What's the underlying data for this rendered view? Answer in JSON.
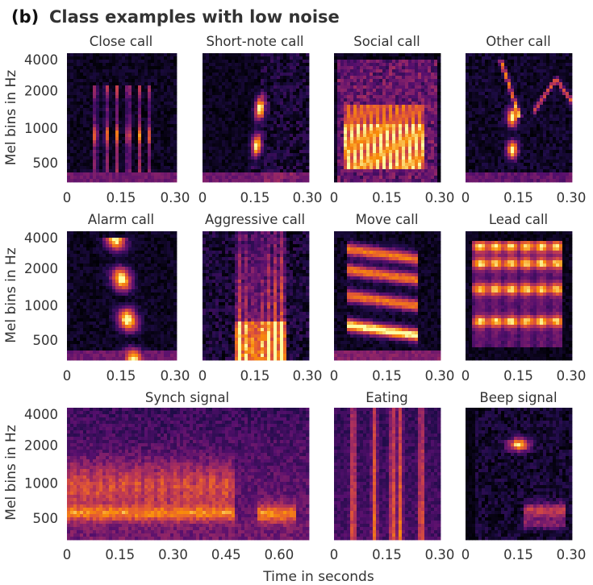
{
  "figure": {
    "panel_letter": "(b)",
    "title": "Class examples with low noise",
    "ylabel": "Mel bins in Hz",
    "xlabel": "Time in seconds"
  },
  "chart_data": [
    {
      "type": "heatmap",
      "title": "Close call",
      "x_ticks": [
        "0",
        "0.15",
        "0.30"
      ],
      "y_ticks": [
        "500",
        "1000",
        "2000",
        "4000"
      ],
      "xlim": [
        0,
        0.3
      ],
      "ylabel": "Mel bins in Hz",
      "pattern": "close",
      "colormap": "inferno"
    },
    {
      "type": "heatmap",
      "title": "Short-note call",
      "x_ticks": [
        "0",
        "0.15",
        "0.30"
      ],
      "y_ticks": [],
      "xlim": [
        0,
        0.3
      ],
      "pattern": "shortnote",
      "colormap": "inferno"
    },
    {
      "type": "heatmap",
      "title": "Social call",
      "x_ticks": [
        "0",
        "0.15",
        "0.30"
      ],
      "y_ticks": [],
      "xlim": [
        0,
        0.3
      ],
      "pattern": "social",
      "colormap": "inferno"
    },
    {
      "type": "heatmap",
      "title": "Other call",
      "x_ticks": [
        "0",
        "0.15",
        "0.30"
      ],
      "y_ticks": [],
      "xlim": [
        0,
        0.3
      ],
      "pattern": "other",
      "colormap": "inferno"
    },
    {
      "type": "heatmap",
      "title": "Alarm call",
      "x_ticks": [
        "0",
        "0.15",
        "0.30"
      ],
      "y_ticks": [
        "500",
        "1000",
        "2000",
        "4000"
      ],
      "xlim": [
        0,
        0.3
      ],
      "ylabel": "Mel bins in Hz",
      "pattern": "alarm",
      "colormap": "inferno"
    },
    {
      "type": "heatmap",
      "title": "Aggressive call",
      "x_ticks": [
        "0",
        "0.15",
        "0.30"
      ],
      "y_ticks": [],
      "xlim": [
        0,
        0.3
      ],
      "pattern": "aggressive",
      "colormap": "inferno"
    },
    {
      "type": "heatmap",
      "title": "Move call",
      "x_ticks": [
        "0",
        "0.15",
        "0.30"
      ],
      "y_ticks": [],
      "xlim": [
        0,
        0.3
      ],
      "pattern": "move",
      "colormap": "inferno"
    },
    {
      "type": "heatmap",
      "title": "Lead call",
      "x_ticks": [
        "0",
        "0.15",
        "0.30"
      ],
      "y_ticks": [],
      "xlim": [
        0,
        0.3
      ],
      "pattern": "lead",
      "colormap": "inferno"
    },
    {
      "type": "heatmap",
      "title": "Synch signal",
      "x_ticks": [
        "0",
        "0.15",
        "0.30",
        "0.45",
        "0.60"
      ],
      "y_ticks": [
        "500",
        "1000",
        "2000",
        "4000"
      ],
      "xlim": [
        0,
        0.68
      ],
      "ylabel": "Mel bins in Hz",
      "pattern": "synch",
      "colormap": "inferno"
    },
    {
      "type": "heatmap",
      "title": "Eating",
      "x_ticks": [
        "0",
        "0.15",
        "0.30"
      ],
      "y_ticks": [],
      "xlim": [
        0,
        0.3
      ],
      "pattern": "eating",
      "colormap": "inferno"
    },
    {
      "type": "heatmap",
      "title": "Beep signal",
      "x_ticks": [
        "0",
        "0.15",
        "0.30"
      ],
      "y_ticks": [],
      "xlim": [
        0,
        0.3
      ],
      "pattern": "beep",
      "colormap": "inferno"
    }
  ]
}
